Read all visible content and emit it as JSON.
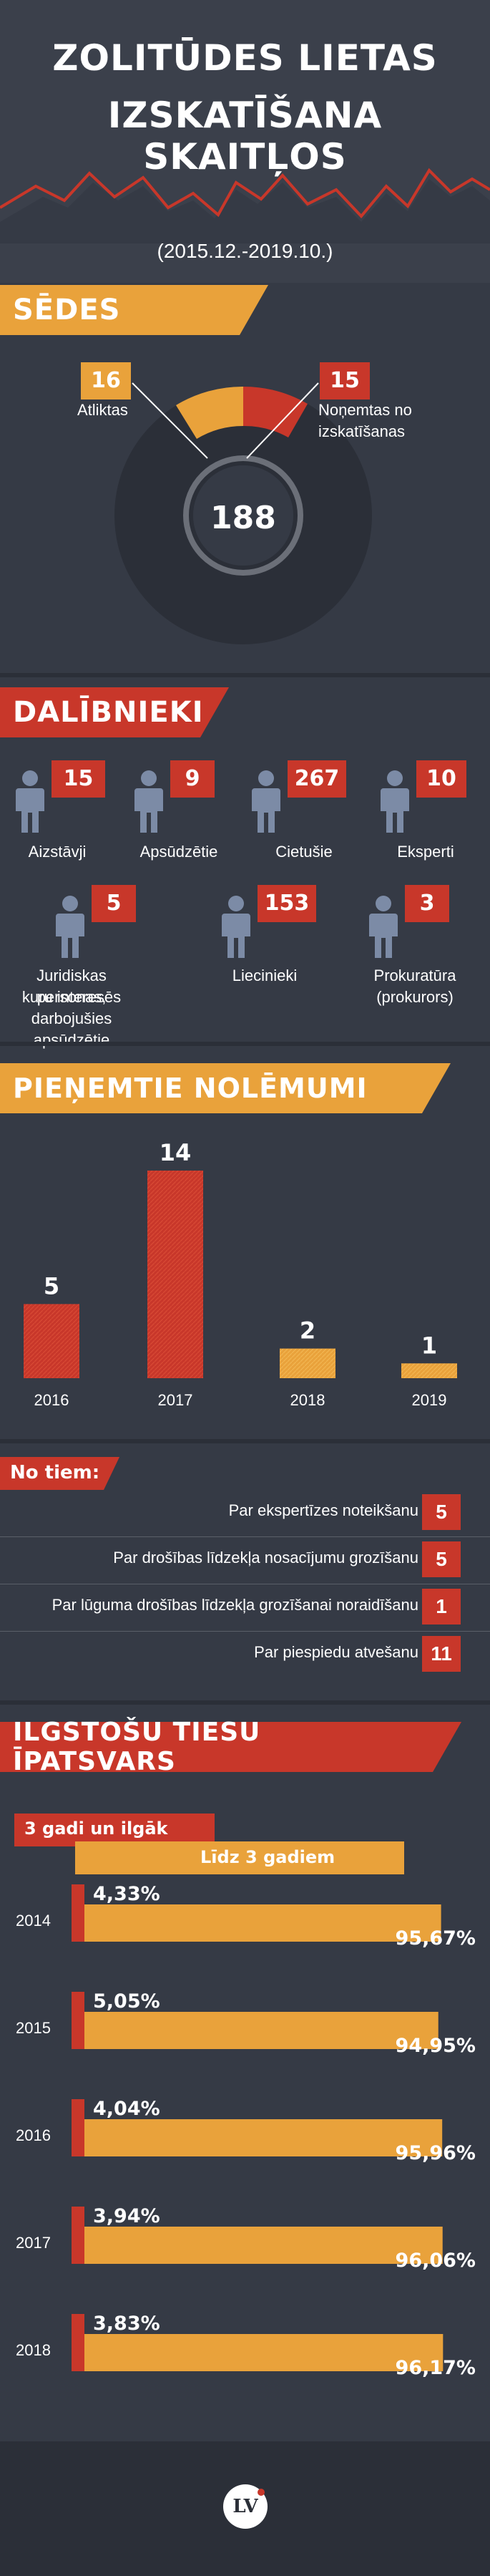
{
  "header": {
    "title_line1": "ZOLITŪDES LIETAS",
    "title_line2": "IZSKATĪŠANA SKAITĻOS",
    "period": "(2015.12.-2019.10.)"
  },
  "sedes": {
    "heading": "SĒDES",
    "total": "188",
    "postponed_value": "16",
    "postponed_label": "Atliktas",
    "removed_value": "15",
    "removed_label_line1": "Noņemtas no",
    "removed_label_line2": "izskatīšanas"
  },
  "dalibnieki": {
    "heading": "DALĪBNIEKI",
    "items": [
      {
        "value": "15",
        "label": "Aizstāvji"
      },
      {
        "value": "9",
        "label": "Apsūdzētie"
      },
      {
        "value": "267",
        "label": "Cietušie"
      },
      {
        "value": "10",
        "label": "Eksperti"
      },
      {
        "value": "5",
        "label_line1": "Juridiskas personas,",
        "label_line2": "kuru interesēs",
        "label_line3": "darbojušies apsūdzētie"
      },
      {
        "value": "153",
        "label": "Liecinieki"
      },
      {
        "value": "3",
        "label_line1": "Prokuratūra",
        "label_line2": "(prokurors)"
      }
    ]
  },
  "nolemumi": {
    "heading": "PIEŅEMTIE NOLĒMUMI"
  },
  "no_tiem": {
    "heading": "No tiem:",
    "rows": [
      {
        "text": "Par ekspertīzes noteikšanu",
        "value": "5"
      },
      {
        "text": "Par drošības līdzekļa nosacījumu grozīšanu",
        "value": "5"
      },
      {
        "text": "Par lūguma drošības līdzekļa grozīšanai noraidīšanu",
        "value": "1"
      },
      {
        "text": "Par piespiedu atvešanu",
        "value": "11"
      }
    ]
  },
  "ilgstosu": {
    "heading": "ILGSTOŠU TIESU ĪPATSVARS",
    "legend_long": "3 gadi un ilgāk",
    "legend_short": "Līdz 3 gadiem"
  },
  "footer": {
    "logo_text": "LV"
  },
  "colors": {
    "background": "#353a45",
    "orange": "#e9a23b",
    "red": "#c8372a",
    "dark_ring": "#2b2f38"
  },
  "chart_data": [
    {
      "type": "pie",
      "categories": [
        "Atliktas",
        "Noņemtas no izskatīšanas"
      ],
      "values": [
        16,
        15
      ],
      "total": 188
    },
    {
      "type": "bar",
      "categories": [
        "2016",
        "2017",
        "2018",
        "2019"
      ],
      "values": [
        5,
        14,
        2,
        1
      ],
      "title": "PIEŅEMTIE NOLĒMUMI"
    },
    {
      "type": "bar",
      "categories": [
        "2014",
        "2015",
        "2016",
        "2017",
        "2018"
      ],
      "series": [
        {
          "name": "3 gadi un ilgāk",
          "values": [
            4.33,
            5.05,
            4.04,
            3.94,
            3.83
          ],
          "labels": [
            "4,33%",
            "5,05%",
            "4,04%",
            "3,94%",
            "3,83%"
          ]
        },
        {
          "name": "Līdz 3 gadiem",
          "values": [
            95.67,
            94.95,
            95.96,
            96.06,
            96.17
          ],
          "labels": [
            "95,67%",
            "94,95%",
            "95,96%",
            "96,06%",
            "96,17%"
          ]
        }
      ],
      "title": "ILGSTOŠU TIESU ĪPATSVARS"
    }
  ]
}
